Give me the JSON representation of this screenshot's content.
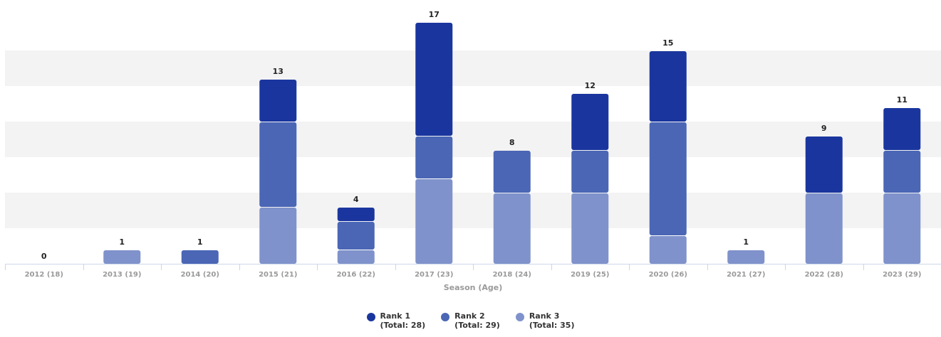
{
  "chart_data": {
    "type": "bar",
    "stacked": true,
    "categories": [
      "2012 (18)",
      "2013 (19)",
      "2014 (20)",
      "2015 (21)",
      "2016 (22)",
      "2017 (23)",
      "2018 (24)",
      "2019 (25)",
      "2020 (26)",
      "2021 (27)",
      "2022 (28)",
      "2023 (29)"
    ],
    "series": [
      {
        "name": "Rank 1",
        "total_label": "(Total: 28)",
        "color": "#1a369e",
        "values": [
          0,
          0,
          0,
          3,
          1,
          8,
          0,
          4,
          5,
          0,
          4,
          3
        ]
      },
      {
        "name": "Rank 2",
        "total_label": "(Total: 29)",
        "color": "#4a66b5",
        "values": [
          0,
          0,
          1,
          6,
          2,
          3,
          3,
          3,
          8,
          0,
          0,
          3
        ]
      },
      {
        "name": "Rank 3",
        "total_label": "(Total: 35)",
        "color": "#7f92cb",
        "values": [
          0,
          1,
          0,
          4,
          1,
          6,
          5,
          5,
          2,
          1,
          5,
          5
        ]
      }
    ],
    "totals": [
      0,
      1,
      1,
      13,
      4,
      17,
      8,
      12,
      15,
      1,
      9,
      11
    ],
    "xlabel": "Season (Age)",
    "ylabel": "",
    "ylim": [
      0,
      17.5
    ],
    "grid": "alternating horizontal bands",
    "legend_position": "bottom-center"
  }
}
